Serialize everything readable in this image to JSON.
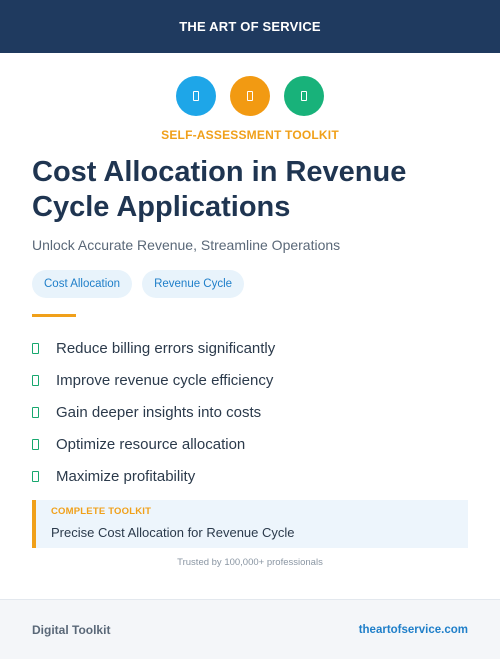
{
  "header": {
    "brand": "THE ART OF SERVICE"
  },
  "icons": [
    {
      "name": "icon-1",
      "color": "#1ea6e8"
    },
    {
      "name": "icon-2",
      "color": "#f29a12"
    },
    {
      "name": "icon-3",
      "color": "#18b27a"
    }
  ],
  "eyebrow": "SELF-ASSESSMENT TOOLKIT",
  "title": "Cost Allocation in Revenue Cycle Applications",
  "subtitle": "Unlock Accurate Revenue, Streamline Operations",
  "tags": [
    "Cost Allocation",
    "Revenue Cycle"
  ],
  "benefits": [
    "Reduce billing errors significantly",
    "Improve revenue cycle efficiency",
    "Gain deeper insights into costs",
    "Optimize resource allocation",
    "Maximize profitability"
  ],
  "callout": {
    "label": "COMPLETE TOOLKIT",
    "value": "Precise Cost Allocation for Revenue Cycle"
  },
  "trusted": "Trusted by 100,000+ professionals",
  "footer": {
    "left": "Digital Toolkit",
    "right": "theartofservice.com"
  },
  "colors": {
    "navy": "#1f3a5f",
    "accent": "#f0a01a",
    "link": "#1f7fc9",
    "check": "#17a86e"
  }
}
